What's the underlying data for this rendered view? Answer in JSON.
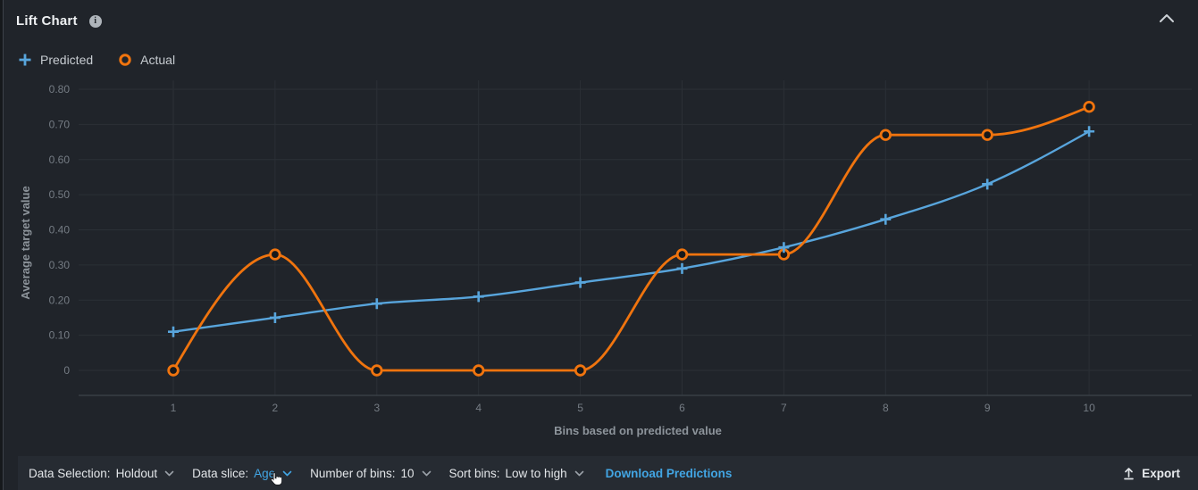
{
  "header": {
    "title": "Lift Chart"
  },
  "collapse_tooltip": "collapse",
  "legend": [
    {
      "name": "predicted",
      "label": "Predicted",
      "marker": "plus",
      "color": "#58a5dc"
    },
    {
      "name": "actual",
      "label": "Actual",
      "marker": "ring",
      "color": "#f0740e"
    }
  ],
  "chart_data": {
    "type": "line",
    "x": [
      1,
      2,
      3,
      4,
      5,
      6,
      7,
      8,
      9,
      10
    ],
    "series": [
      {
        "name": "Predicted",
        "marker": "plus",
        "color": "#58a5dc",
        "values": [
          0.11,
          0.15,
          0.19,
          0.21,
          0.25,
          0.29,
          0.35,
          0.43,
          0.53,
          0.68
        ]
      },
      {
        "name": "Actual",
        "marker": "ring",
        "color": "#f0740e",
        "values": [
          0,
          0.33,
          0,
          0,
          0,
          0.33,
          0.33,
          0.67,
          0.67,
          0.75
        ]
      }
    ],
    "xlabel": "Bins based on predicted value",
    "ylabel": "Average target value",
    "ylim": [
      0,
      0.8
    ],
    "yticks": [
      0,
      0.1,
      0.2,
      0.3,
      0.4,
      0.5,
      0.6,
      0.7,
      0.8
    ],
    "ytick_labels": [
      "0",
      "0.10",
      "0.20",
      "0.30",
      "0.40",
      "0.50",
      "0.60",
      "0.70",
      "0.80"
    ],
    "xtick_labels": [
      "1",
      "2",
      "3",
      "4",
      "5",
      "6",
      "7",
      "8",
      "9",
      "10"
    ],
    "grid": true,
    "legend_position": "top-left",
    "curve": "monotone"
  },
  "footer": {
    "controls": [
      {
        "name": "data-selection",
        "label": "Data Selection:",
        "value": "Holdout",
        "highlighted": false
      },
      {
        "name": "data-slice",
        "label": "Data slice:",
        "value": "Age",
        "highlighted": true
      },
      {
        "name": "number-of-bins",
        "label": "Number of bins:",
        "value": "10",
        "highlighted": false
      },
      {
        "name": "sort-bins",
        "label": "Sort bins:",
        "value": "Low to high",
        "highlighted": false
      }
    ],
    "download_label": "Download Predictions",
    "export_label": "Export"
  },
  "colors": {
    "predicted": "#58a5dc",
    "actual": "#f0740e",
    "link": "#42a5e3",
    "background": "#20242a",
    "footer_background": "#262b32",
    "gridline": "#2b3036",
    "axis_line": "#383e45"
  }
}
